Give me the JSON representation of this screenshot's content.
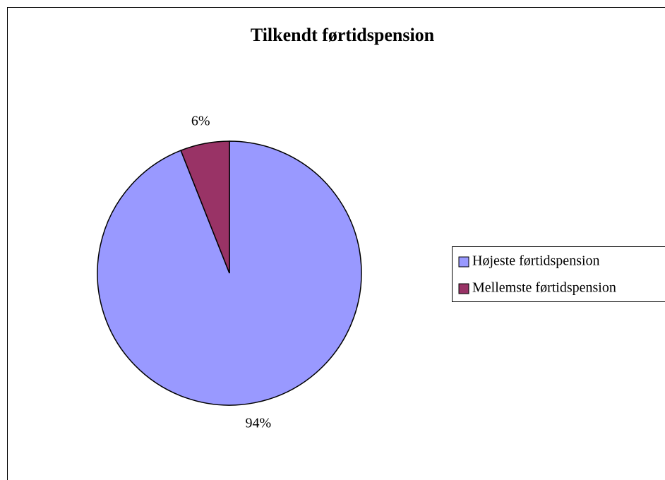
{
  "chart_data": {
    "type": "pie",
    "title": "Tilkendt førtidspension",
    "categories": [
      "Højeste førtidspension",
      "Mellemste førtidspension"
    ],
    "values": [
      94,
      6
    ],
    "value_labels": [
      "94%",
      "6%"
    ],
    "colors": [
      "#9999ff",
      "#993366"
    ],
    "legend": "right"
  }
}
